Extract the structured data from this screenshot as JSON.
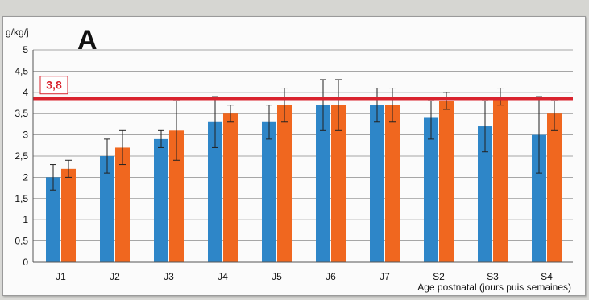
{
  "chart_data": {
    "type": "bar",
    "panel_label": "A",
    "ylabel": "g/kg/j",
    "xlabel": "Age postnatal (jours puis semaines)",
    "ylim": [
      0,
      5
    ],
    "yticks": [
      "0",
      "0,5",
      "1",
      "1,5",
      "2",
      "2,5",
      "3",
      "3,5",
      "4",
      "4,5",
      "5"
    ],
    "grid": true,
    "categories": [
      "J1",
      "J2",
      "J3",
      "J4",
      "J5",
      "J6",
      "J7",
      "S2",
      "S3",
      "S4"
    ],
    "series": [
      {
        "color": "#2e86c8",
        "values": [
          2.0,
          2.5,
          2.9,
          3.3,
          3.3,
          3.7,
          3.7,
          3.4,
          3.2,
          3.0
        ],
        "error_low": [
          1.7,
          2.1,
          2.7,
          2.7,
          2.9,
          3.1,
          3.3,
          2.9,
          2.6,
          2.1
        ],
        "error_high": [
          2.3,
          2.9,
          3.1,
          3.9,
          3.7,
          4.3,
          4.1,
          3.8,
          3.8,
          3.9
        ]
      },
      {
        "color": "#f0671f",
        "values": [
          2.2,
          2.7,
          3.1,
          3.5,
          3.7,
          3.7,
          3.7,
          3.8,
          3.9,
          3.5
        ],
        "error_low": [
          2.0,
          2.3,
          2.4,
          3.3,
          3.3,
          3.1,
          3.3,
          3.6,
          3.7,
          3.1
        ],
        "error_high": [
          2.4,
          3.1,
          3.8,
          3.7,
          4.1,
          4.3,
          4.1,
          4.0,
          4.1,
          3.8
        ]
      }
    ],
    "reference_line": {
      "value": 3.85,
      "label": "3,8",
      "color": "#d9232e"
    }
  }
}
